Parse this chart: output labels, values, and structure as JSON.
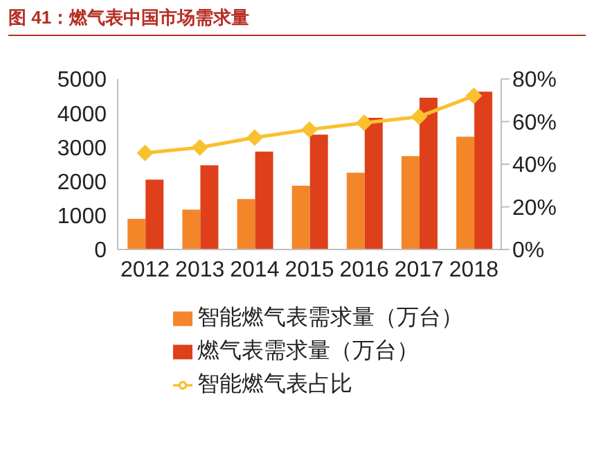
{
  "chart_data": {
    "type": "bar",
    "title": "图 41：燃气表中国市场需求量",
    "categories": [
      "2012",
      "2013",
      "2014",
      "2015",
      "2016",
      "2017",
      "2018"
    ],
    "series": [
      {
        "name": "智能燃气表需求量（万台）",
        "color": "#f4862a",
        "values": [
          900,
          1170,
          1480,
          1870,
          2250,
          2740,
          3310
        ]
      },
      {
        "name": "燃气表需求量（万台）",
        "color": "#de401c",
        "values": [
          2050,
          2470,
          2870,
          3370,
          3860,
          4450,
          4630
        ]
      },
      {
        "name": "智能燃气表占比",
        "type": "line",
        "axis": "y2",
        "color": "#f9c02f",
        "marker": "diamond",
        "values": [
          45.3,
          47.9,
          52.5,
          56.3,
          59.4,
          62.3,
          72.1
        ]
      }
    ],
    "ylim": [
      0,
      5000
    ],
    "yticks": [
      0,
      1000,
      2000,
      3000,
      4000,
      5000
    ],
    "y2lim": [
      0,
      80
    ],
    "y2ticks": [
      {
        "value": 0,
        "label": "0%"
      },
      {
        "value": 20,
        "label": "20%"
      },
      {
        "value": 40,
        "label": "40%"
      },
      {
        "value": 60,
        "label": "60%"
      },
      {
        "value": 80,
        "label": "80%"
      }
    ],
    "grid": false,
    "legend": "bottom"
  }
}
